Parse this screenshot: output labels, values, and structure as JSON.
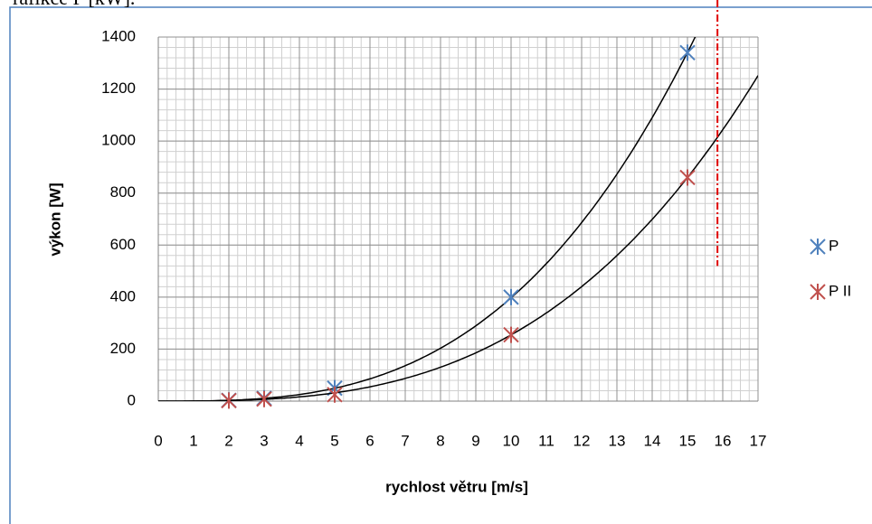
{
  "caption": "rafikce P [kW].",
  "chart_data": {
    "type": "scatter",
    "xlabel": "rychlost větru [m/s]",
    "ylabel": "výkon [W]",
    "xlim": [
      0,
      17
    ],
    "xticks": [
      0,
      1,
      2,
      3,
      4,
      5,
      6,
      7,
      8,
      9,
      10,
      11,
      12,
      13,
      14,
      15,
      16,
      17
    ],
    "ylim": [
      0,
      1400
    ],
    "yticks": [
      0,
      200,
      400,
      600,
      800,
      1000,
      1200,
      1400
    ],
    "grid": true,
    "minor_xstep": 0.25,
    "minor_ystep": 40,
    "trendline": "cubic",
    "trendline_color": "#000000",
    "legend": "right",
    "series": [
      {
        "name": "P",
        "color": "#4f81bd",
        "x": [
          2,
          3,
          5,
          10,
          15
        ],
        "values": [
          3,
          11,
          50,
          400,
          1340
        ]
      },
      {
        "name": "P II",
        "color": "#c0504d",
        "x": [
          2,
          3,
          5,
          10,
          15
        ],
        "values": [
          2,
          8,
          25,
          255,
          860
        ]
      }
    ],
    "reference_line": {
      "x": 15.85,
      "y_from": 520,
      "color": "#e00000"
    }
  }
}
